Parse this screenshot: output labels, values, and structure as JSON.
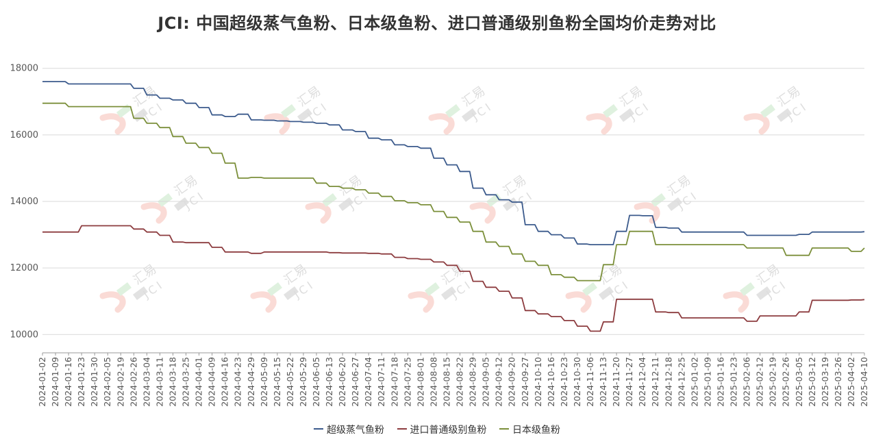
{
  "chart_data": {
    "type": "line",
    "title": "JCI: 中国超级蒸气鱼粉、日本级鱼粉、进口普通级别鱼粉全国均价走势对比",
    "ylim": [
      9450,
      18200
    ],
    "yticks": [
      10000,
      12000,
      14000,
      16000,
      18000
    ],
    "x_labels": [
      "2024-01-02",
      "2024-01-09",
      "2024-01-16",
      "2024-01-23",
      "2024-01-30",
      "2024-02-05",
      "2024-02-19",
      "2024-02-26",
      "2024-03-04",
      "2024-03-11",
      "2024-03-18",
      "2024-03-25",
      "2024-04-01",
      "2024-04-09",
      "2024-04-16",
      "2024-04-23",
      "2024-04-29",
      "2024-05-09",
      "2024-05-15",
      "2024-05-22",
      "2024-05-29",
      "2024-06-05",
      "2024-06-13",
      "2024-06-20",
      "2024-06-27",
      "2024-07-04",
      "2024-07-11",
      "2024-07-18",
      "2024-07-25",
      "2024-08-01",
      "2024-08-08",
      "2024-08-15",
      "2024-08-22",
      "2024-08-29",
      "2024-09-05",
      "2024-09-12",
      "2024-09-20",
      "2024-09-27",
      "2024-10-10",
      "2024-10-16",
      "2024-10-23",
      "2024-10-30",
      "2024-11-06",
      "2024-11-13",
      "2024-11-20",
      "2024-11-27",
      "2024-12-04",
      "2024-12-11",
      "2024-12-18",
      "2024-12-25",
      "2025-01-02",
      "2025-01-09",
      "2025-01-16",
      "2025-01-23",
      "2025-02-06",
      "2025-02-12",
      "2025-02-19",
      "2025-02-26",
      "2025-03-05",
      "2025-03-12",
      "2025-03-19",
      "2025-03-26",
      "2025-04-02",
      "2025-04-10"
    ],
    "grid": true,
    "legend_position": "bottom",
    "series": [
      {
        "name": "超级蒸气鱼粉",
        "color": "#3b5a8c",
        "values": [
          17600,
          17600,
          17530,
          17530,
          17530,
          17530,
          17530,
          17400,
          17200,
          17100,
          17050,
          16950,
          16820,
          16600,
          16550,
          16620,
          16450,
          16440,
          16420,
          16400,
          16380,
          16350,
          16300,
          16150,
          16100,
          15900,
          15850,
          15700,
          15650,
          15600,
          15300,
          15100,
          14900,
          14400,
          14200,
          14050,
          13980,
          13300,
          13100,
          13000,
          12900,
          12720,
          12700,
          12700,
          13100,
          13580,
          13570,
          13220,
          13200,
          13080,
          13080,
          13080,
          13080,
          13080,
          12980,
          12980,
          12980,
          12980,
          13010,
          13080,
          13080,
          13080,
          13080,
          13090
        ]
      },
      {
        "name": "进口普通级别鱼粉",
        "color": "#8c3b3e",
        "values": [
          13080,
          13080,
          13080,
          13270,
          13270,
          13270,
          13270,
          13170,
          13080,
          12980,
          12780,
          12760,
          12760,
          12620,
          12480,
          12480,
          12440,
          12480,
          12480,
          12480,
          12480,
          12480,
          12460,
          12450,
          12450,
          12440,
          12420,
          12320,
          12280,
          12260,
          12180,
          12080,
          11900,
          11600,
          11420,
          11300,
          11100,
          10720,
          10620,
          10540,
          10420,
          10250,
          10100,
          10380,
          11060,
          11060,
          11060,
          10680,
          10660,
          10500,
          10500,
          10500,
          10500,
          10500,
          10400,
          10560,
          10560,
          10560,
          10680,
          11030,
          11030,
          11030,
          11040,
          11050
        ]
      },
      {
        "name": "日本级鱼粉",
        "color": "#7b8f3a",
        "values": [
          16950,
          16950,
          16850,
          16850,
          16850,
          16850,
          16850,
          16500,
          16350,
          16220,
          15950,
          15750,
          15620,
          15450,
          15150,
          14700,
          14720,
          14700,
          14700,
          14700,
          14700,
          14550,
          14450,
          14400,
          14350,
          14250,
          14150,
          14020,
          13960,
          13900,
          13700,
          13520,
          13380,
          13100,
          12780,
          12650,
          12420,
          12200,
          12080,
          11800,
          11720,
          11620,
          11620,
          12100,
          12700,
          13100,
          13100,
          12700,
          12700,
          12700,
          12700,
          12700,
          12700,
          12700,
          12600,
          12600,
          12600,
          12380,
          12380,
          12600,
          12600,
          12600,
          12500,
          12600
        ]
      }
    ]
  },
  "watermark": {
    "brand_cn": "汇易",
    "brand_en": "JCI"
  }
}
